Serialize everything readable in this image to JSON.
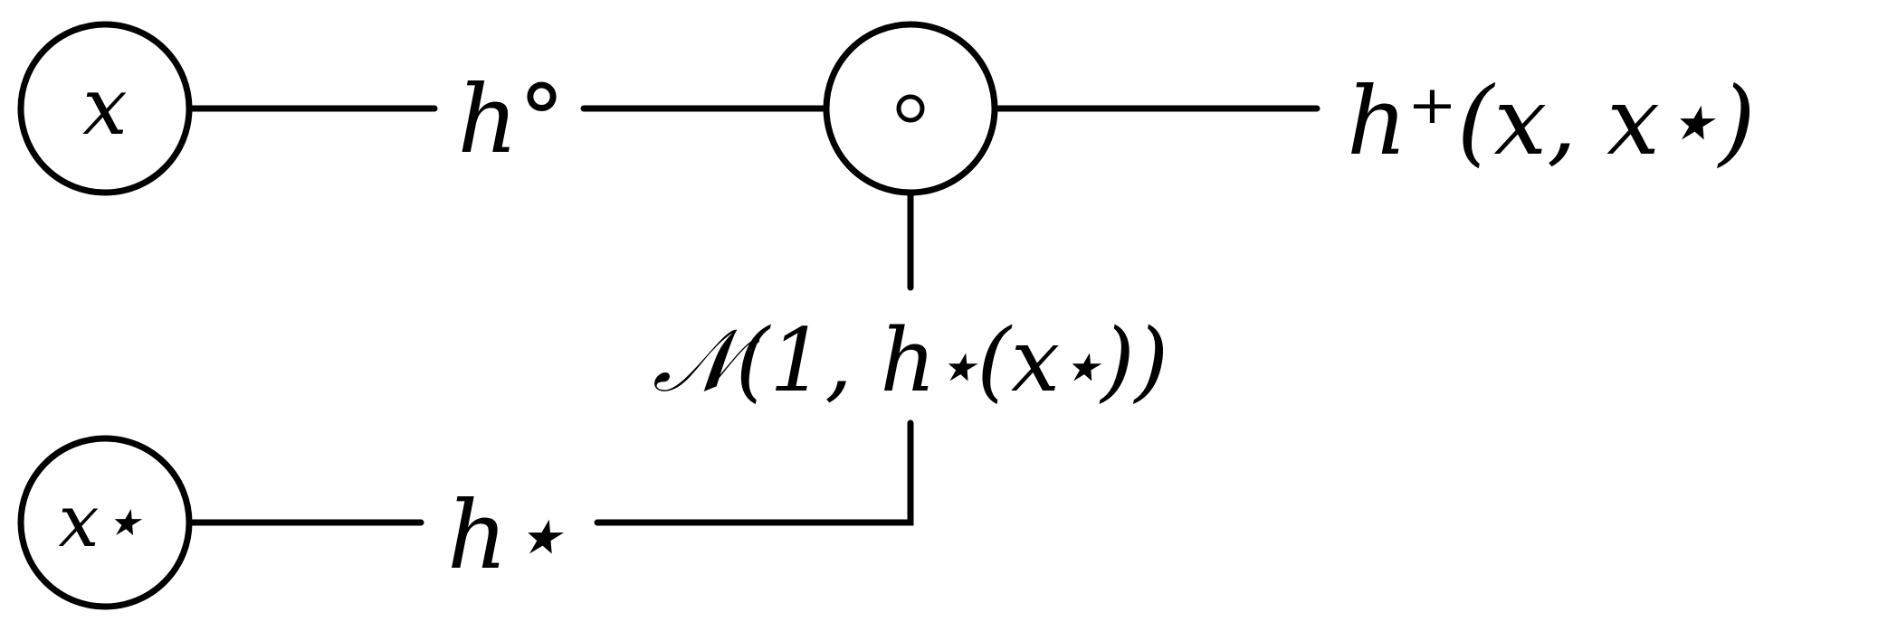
{
  "nodes": {
    "x": "x",
    "x_star": "x⋆",
    "product": "⊙"
  },
  "labels": {
    "h_circ": "h°",
    "h_star": "h⋆",
    "output": "h⁺(x, x⋆)",
    "noise": "𝒩(1, h⋆(x⋆))"
  }
}
